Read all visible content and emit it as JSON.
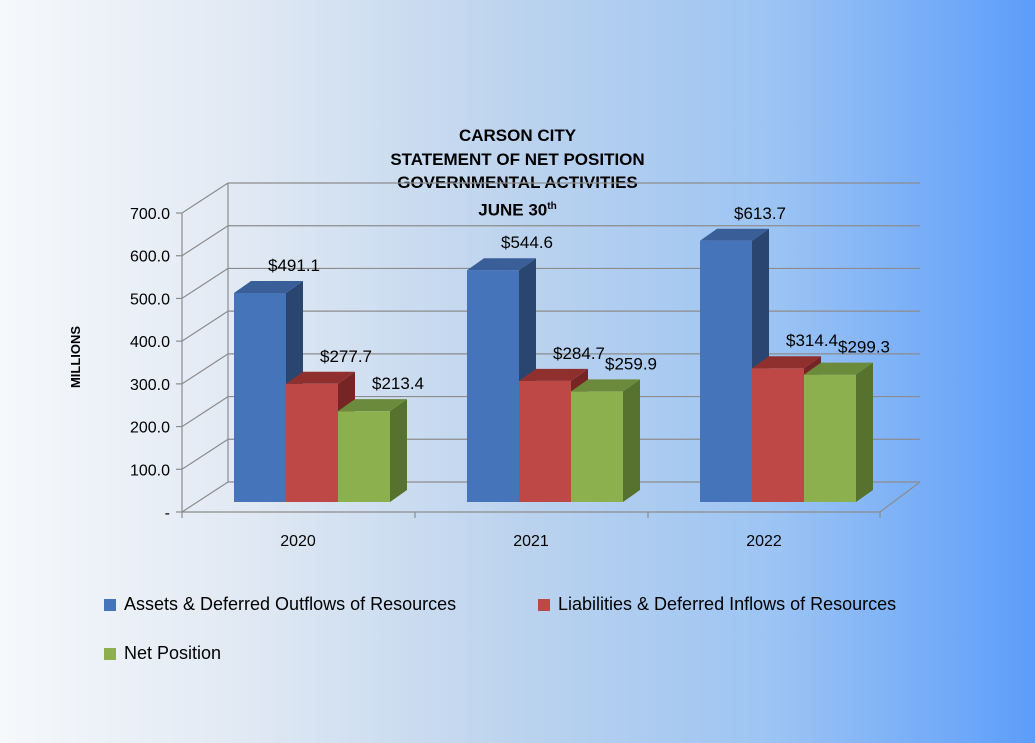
{
  "chart_data": {
    "type": "bar",
    "title": [
      "CARSON CITY",
      "STATEMENT OF NET POSITION",
      "GOVERNMENTAL ACTIVITIES",
      "JUNE 30"
    ],
    "title_superscript": "th",
    "ylabel": "MILLIONS",
    "xlabel": "",
    "categories": [
      "2020",
      "2021",
      "2022"
    ],
    "ylim": [
      0,
      700
    ],
    "yticks": [
      "-",
      "100.0",
      "200.0",
      "300.0",
      "400.0",
      "500.0",
      "600.0",
      "700.0"
    ],
    "grid": true,
    "style": "3d-clustered",
    "legend_position": "bottom",
    "series": [
      {
        "name": "Assets & Deferred Outflows of Resources",
        "values": [
          491.1,
          544.6,
          613.7
        ],
        "labels": [
          "$491.1",
          "$544.6",
          "$613.7"
        ],
        "color": "#4674bb"
      },
      {
        "name": "Liabilities & Deferred Inflows of Resources",
        "values": [
          277.7,
          284.7,
          314.4
        ],
        "labels": [
          "$277.7",
          "$284.7",
          "$314.4"
        ],
        "color": "#bd4846"
      },
      {
        "name": "Net Position",
        "values": [
          213.4,
          259.9,
          299.3
        ],
        "labels": [
          "$213.4",
          "$259.9",
          "$299.3"
        ],
        "color": "#8db04f"
      }
    ]
  }
}
